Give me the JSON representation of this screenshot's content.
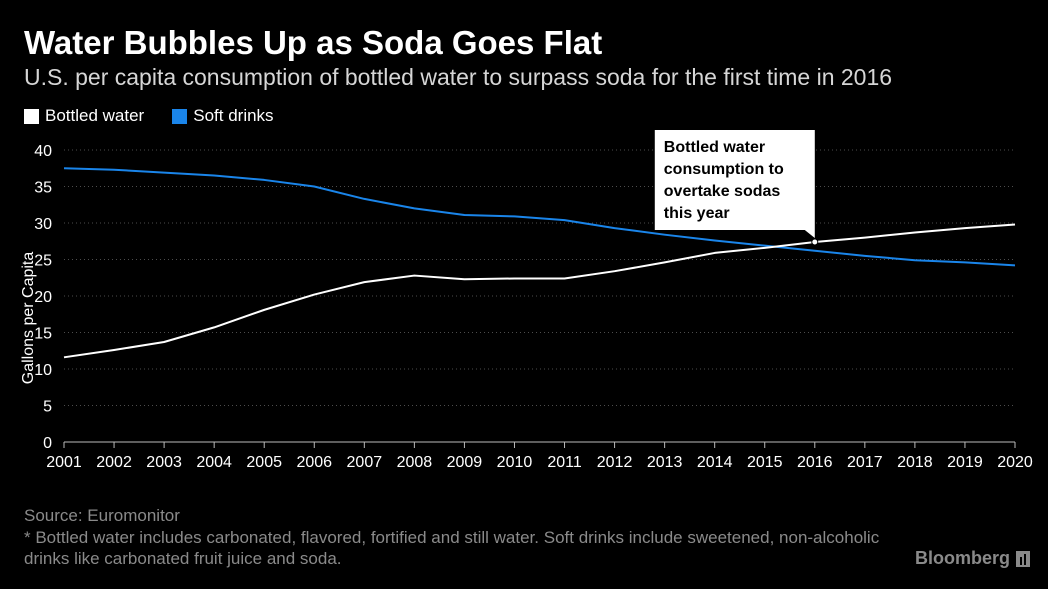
{
  "header": {
    "title": "Water Bubbles Up as Soda Goes Flat",
    "subtitle": "U.S. per capita consumption of bottled water to surpass soda for the first time in 2016"
  },
  "colors": {
    "background": "#000000",
    "bottled_water": "#ffffff",
    "soft_drinks": "#1a85ea",
    "grid": "#4d4d4d",
    "muted_text": "#8a8a8a",
    "callout_bg": "#ffffff",
    "callout_text": "#000000"
  },
  "chart_data": {
    "type": "line",
    "title": "Water Bubbles Up as Soda Goes Flat",
    "subtitle": "U.S. per capita consumption of bottled water to surpass soda for the first time in 2016",
    "xlabel": "",
    "ylabel": "Gallons per Capita",
    "x": [
      2001,
      2002,
      2003,
      2004,
      2005,
      2006,
      2007,
      2008,
      2009,
      2010,
      2011,
      2012,
      2013,
      2014,
      2015,
      2016,
      2017,
      2018,
      2019,
      2020
    ],
    "ylim": [
      0,
      40
    ],
    "yticks": [
      0,
      5,
      10,
      15,
      20,
      25,
      30,
      35,
      40
    ],
    "grid": true,
    "legend": "top-left",
    "series": [
      {
        "name": "Bottled water",
        "color": "#ffffff",
        "values": [
          11.6,
          12.6,
          13.7,
          15.7,
          18.1,
          20.2,
          21.9,
          22.8,
          22.3,
          22.4,
          22.4,
          23.4,
          24.6,
          25.9,
          26.6,
          27.4,
          28.0,
          28.7,
          29.3,
          29.8
        ]
      },
      {
        "name": "Soft drinks",
        "color": "#1a85ea",
        "values": [
          37.5,
          37.3,
          36.9,
          36.5,
          35.9,
          35.0,
          33.3,
          32.0,
          31.1,
          30.9,
          30.4,
          29.3,
          28.4,
          27.6,
          26.9,
          26.2,
          25.5,
          24.9,
          24.6,
          24.2
        ]
      }
    ],
    "annotation": {
      "text_lines": [
        "Bottled water",
        "consumption to",
        "overtake sodas",
        "this year"
      ],
      "x": 2016,
      "y": 27.4
    }
  },
  "footer": {
    "source": "Source: Euromonitor",
    "note": "* Bottled water includes carbonated, flavored, fortified and still water. Soft drinks include sweetened, non-alcoholic drinks like carbonated fruit juice and soda.",
    "brand": "Bloomberg"
  }
}
